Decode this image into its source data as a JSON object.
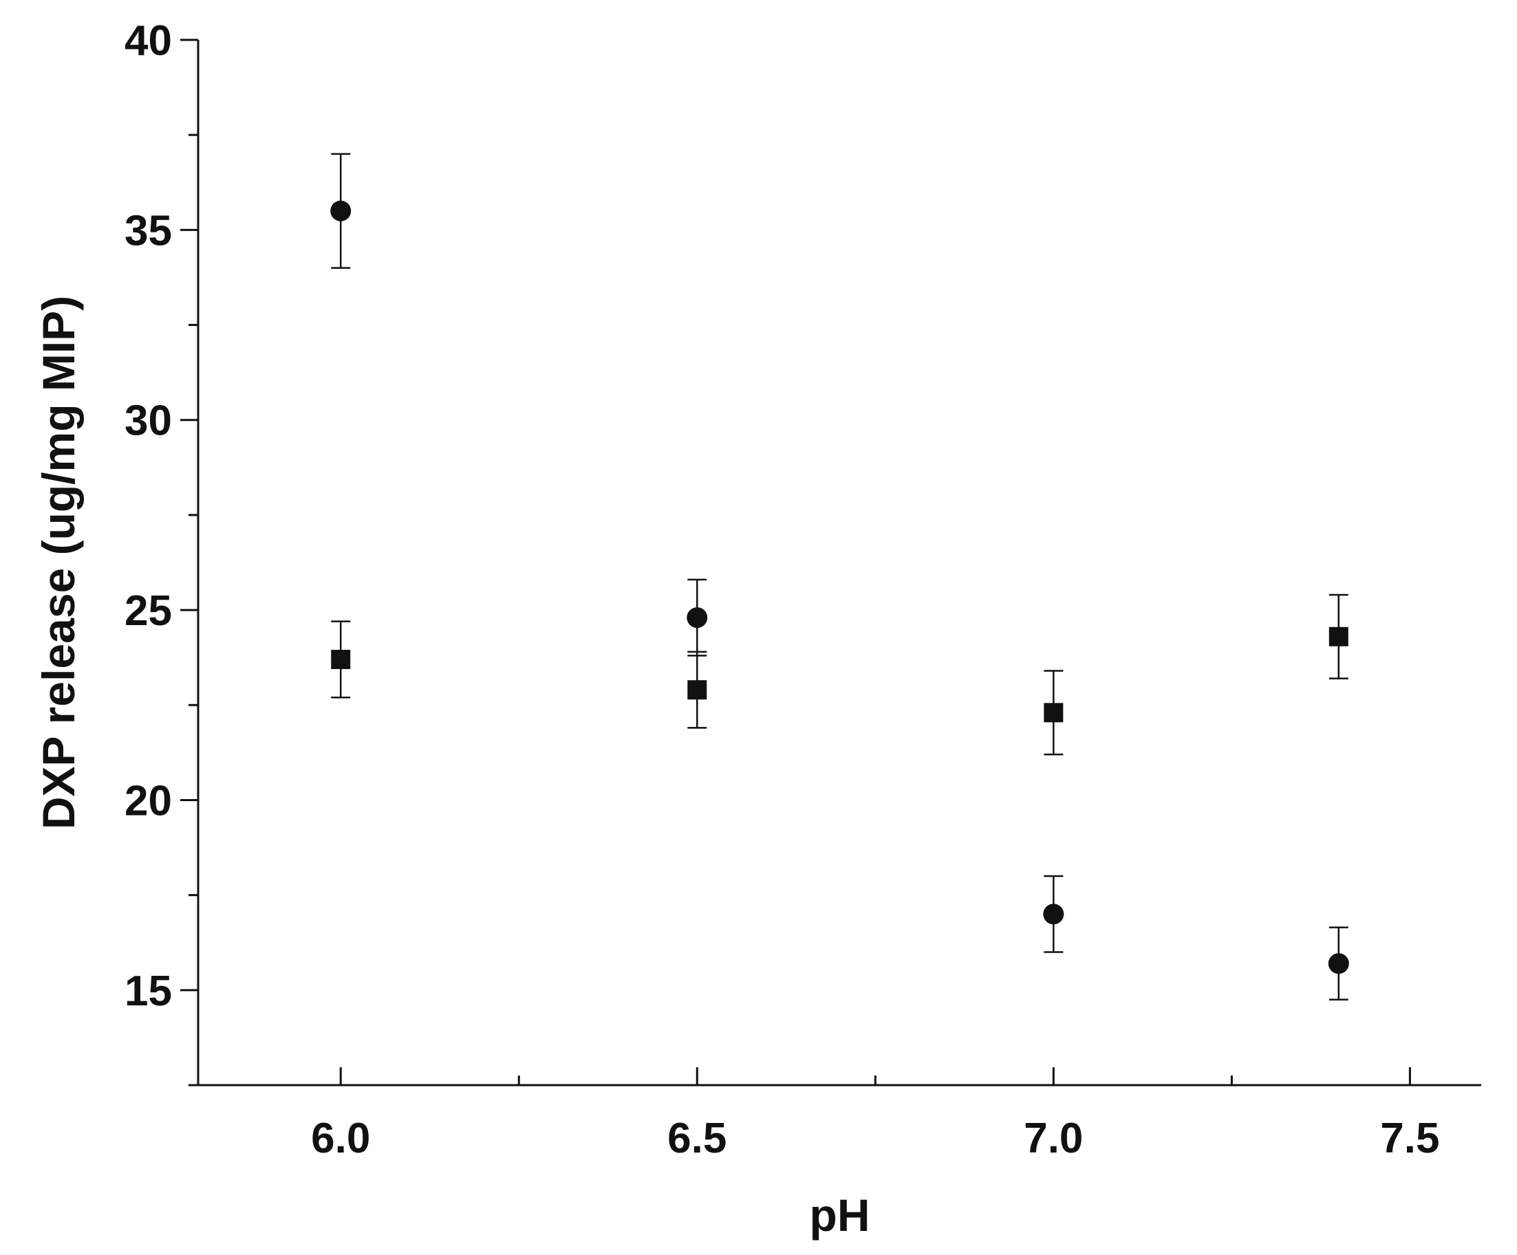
{
  "chart_data": {
    "type": "scatter",
    "title": "",
    "xlabel": "pH",
    "ylabel": "DXP release (ug/mg MIP)",
    "xlim": [
      5.8,
      7.6
    ],
    "ylim": [
      12.5,
      40
    ],
    "x_ticks": [
      {
        "value": 6.0,
        "label": "6.0"
      },
      {
        "value": 6.5,
        "label": "6.5"
      },
      {
        "value": 7.0,
        "label": "7.0"
      },
      {
        "value": 7.5,
        "label": "7.5"
      }
    ],
    "x_minor_ticks": [
      6.25,
      6.75,
      7.25
    ],
    "y_ticks": [
      {
        "value": 15,
        "label": "15"
      },
      {
        "value": 20,
        "label": "20"
      },
      {
        "value": 25,
        "label": "25"
      },
      {
        "value": 30,
        "label": "30"
      },
      {
        "value": 35,
        "label": "35"
      },
      {
        "value": 40,
        "label": "40"
      }
    ],
    "y_minor_ticks": [
      12.5,
      17.5,
      22.5,
      27.5,
      32.5,
      37.5
    ],
    "grid": false,
    "legend": "none",
    "series": [
      {
        "marker": "circle",
        "color": "#111111",
        "points": [
          {
            "x": 6.0,
            "y": 35.5,
            "err": 1.5
          },
          {
            "x": 6.5,
            "y": 24.8,
            "err": 1.0
          },
          {
            "x": 7.0,
            "y": 17.0,
            "err": 1.0
          },
          {
            "x": 7.4,
            "y": 15.7,
            "err": 0.95
          }
        ]
      },
      {
        "marker": "square",
        "color": "#111111",
        "points": [
          {
            "x": 6.0,
            "y": 23.7,
            "err": 1.0
          },
          {
            "x": 6.5,
            "y": 22.9,
            "err": 1.0
          },
          {
            "x": 7.0,
            "y": 22.3,
            "err": 1.1
          },
          {
            "x": 7.4,
            "y": 24.3,
            "err": 1.1
          }
        ]
      }
    ]
  }
}
